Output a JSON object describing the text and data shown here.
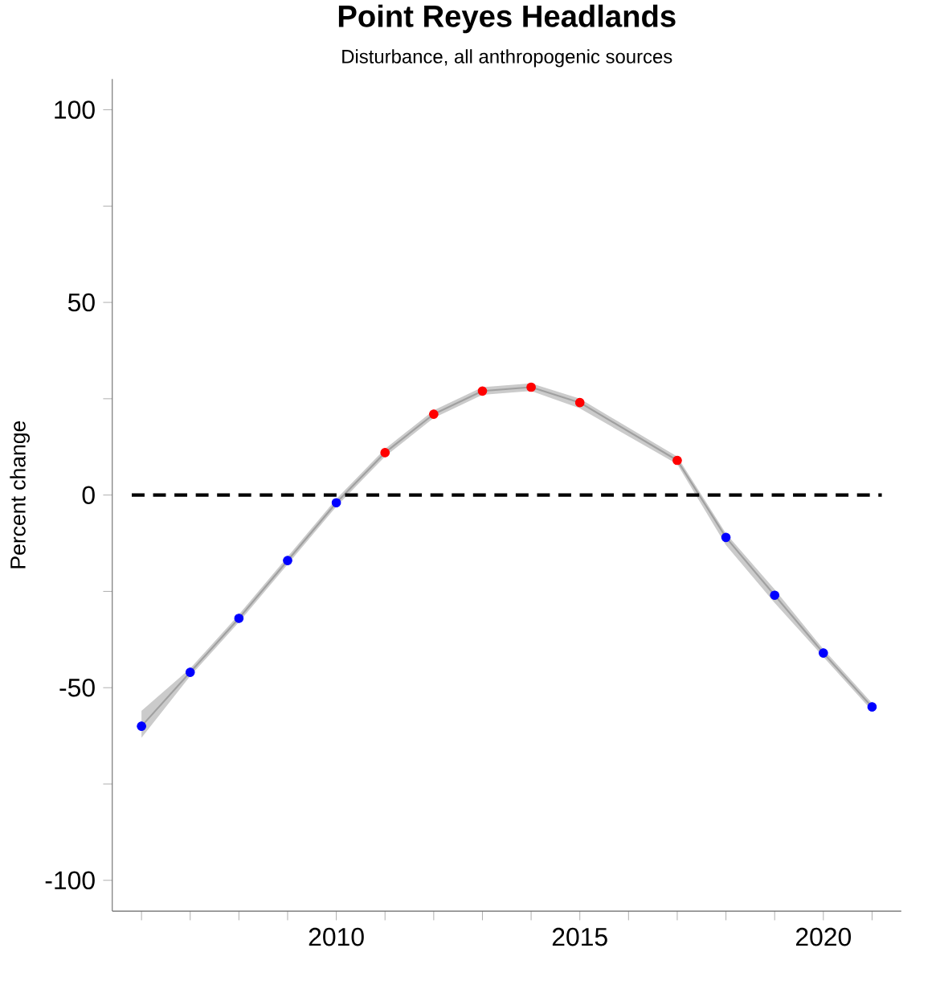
{
  "chart_data": {
    "type": "line",
    "title": "Point Reyes Headlands",
    "subtitle": "Disturbance, all anthropogenic sources",
    "ylabel": "Percent change",
    "x": [
      2006,
      2007,
      2008,
      2009,
      2010,
      2011,
      2012,
      2013,
      2014,
      2015,
      2017,
      2018,
      2019,
      2020,
      2021
    ],
    "series": [
      {
        "type": "line",
        "color": "#a0a0a0",
        "marker": "none",
        "values": [
          -60,
          -46,
          -32,
          -17,
          -2,
          11,
          21,
          27,
          28,
          24,
          9,
          -11,
          -26,
          -41,
          -55
        ],
        "lower": [
          -63,
          -47,
          -33,
          -18,
          -3,
          10,
          20,
          26,
          27,
          22.5,
          8,
          -13,
          -28,
          -42,
          -56
        ],
        "upper": [
          -56,
          -45,
          -31,
          -16,
          -1,
          12,
          22,
          28,
          29,
          25,
          10,
          -10,
          -24.5,
          -40,
          -54
        ]
      },
      {
        "type": "scatter",
        "marker": "circle",
        "colors": [
          "#0000ff",
          "#0000ff",
          "#0000ff",
          "#0000ff",
          "#0000ff",
          "#ff0000",
          "#ff0000",
          "#ff0000",
          "#ff0000",
          "#ff0000",
          "#ff0000",
          "#0000ff",
          "#0000ff",
          "#0000ff",
          "#0000ff"
        ],
        "values": [
          -60,
          -46,
          -32,
          -17,
          -2,
          11,
          21,
          27,
          28,
          24,
          9,
          -11,
          -26,
          -41,
          -55
        ]
      }
    ],
    "ref_lines": [
      {
        "axis": "y",
        "value": 0,
        "color": "#000000",
        "line_style": "dashed"
      }
    ],
    "xlim": [
      2005.4,
      2021.6
    ],
    "ylim": [
      -108,
      108
    ],
    "xticks": [
      {
        "value": 2006,
        "label": null
      },
      {
        "value": 2007,
        "label": null
      },
      {
        "value": 2008,
        "label": null
      },
      {
        "value": 2009,
        "label": null
      },
      2010,
      {
        "value": 2011,
        "label": null
      },
      {
        "value": 2012,
        "label": null
      },
      {
        "value": 2013,
        "label": null
      },
      {
        "value": 2014,
        "label": null
      },
      2015,
      {
        "value": 2016,
        "label": null
      },
      {
        "value": 2017,
        "label": null
      },
      {
        "value": 2018,
        "label": null
      },
      {
        "value": 2019,
        "label": null
      },
      2020,
      {
        "value": 2021,
        "label": null
      }
    ],
    "yticks": [
      -100,
      {
        "value": -75,
        "label": null
      },
      -50,
      {
        "value": -25,
        "label": null
      },
      0,
      {
        "value": 25,
        "label": null
      },
      50,
      {
        "value": 75,
        "label": null
      },
      100
    ]
  }
}
